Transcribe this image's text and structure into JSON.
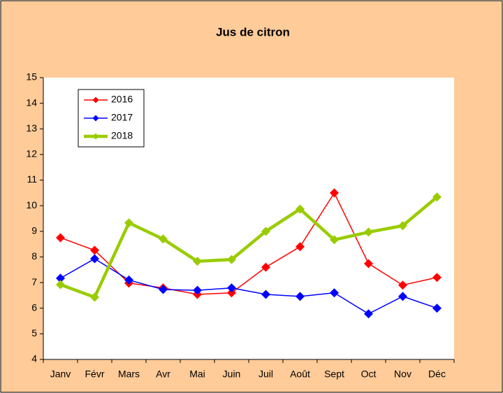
{
  "chart_data": {
    "type": "line",
    "title": "Jus de citron",
    "categories": [
      "Janv",
      "Févr",
      "Mars",
      "Avr",
      "Mai",
      "Juin",
      "Juil",
      "Août",
      "Sept",
      "Oct",
      "Nov",
      "Déc"
    ],
    "series": [
      {
        "name": "2016",
        "color": "#ff0000",
        "line_width": 1.5,
        "values": [
          8.75,
          8.26,
          6.98,
          6.79,
          6.54,
          6.6,
          7.6,
          8.4,
          10.5,
          7.74,
          6.9,
          7.2
        ]
      },
      {
        "name": "2017",
        "color": "#0000ff",
        "line_width": 1.5,
        "values": [
          7.17,
          7.93,
          7.1,
          6.73,
          6.7,
          6.79,
          6.54,
          6.46,
          6.6,
          5.78,
          6.46,
          6.0
        ]
      },
      {
        "name": "2018",
        "color": "#99cc00",
        "line_width": 4.5,
        "values": [
          6.92,
          6.43,
          9.33,
          8.7,
          7.83,
          7.9,
          9.0,
          9.87,
          8.67,
          8.97,
          9.22,
          10.34
        ]
      }
    ],
    "ylim": [
      4,
      15
    ],
    "yticks": [
      4,
      5,
      6,
      7,
      8,
      9,
      10,
      11,
      12,
      13,
      14,
      15
    ],
    "grid": false,
    "legend": "upper left"
  }
}
